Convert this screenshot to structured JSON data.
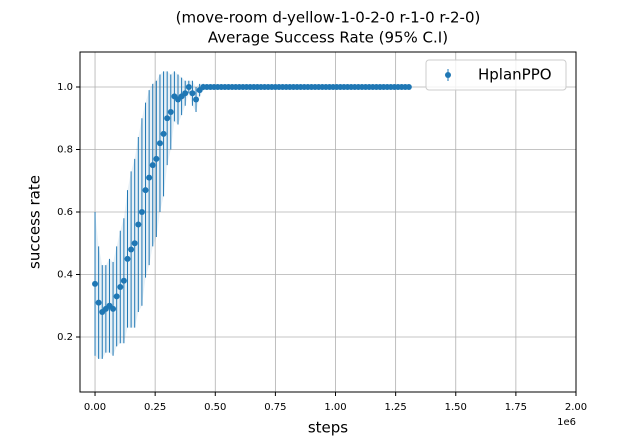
{
  "chart_data": {
    "type": "errorbar",
    "title": "(move-room d-yellow-1-0-2-0 r-1-0 r-2-0)",
    "subtitle": "Average Success Rate (95% C.I)",
    "x_label": "steps",
    "y_label": "success rate",
    "x_offset_label": "1e6",
    "legend": "upper right",
    "grid": true,
    "xlim": [
      -62500,
      2000000
    ],
    "xticks": [
      {
        "value": 0,
        "label": "0.00"
      },
      {
        "value": 250000,
        "label": "0.25"
      },
      {
        "value": 500000,
        "label": "0.50"
      },
      {
        "value": 750000,
        "label": "0.75"
      },
      {
        "value": 1000000,
        "label": "1.00"
      },
      {
        "value": 1250000,
        "label": "1.25"
      },
      {
        "value": 1500000,
        "label": "1.50"
      },
      {
        "value": 1750000,
        "label": "1.75"
      },
      {
        "value": 2000000,
        "label": "2.00"
      }
    ],
    "ylim": [
      0.024,
      1.112
    ],
    "yticks": [
      0.2,
      0.4,
      0.6,
      0.8,
      {
        "value": 1,
        "label": "1.0"
      }
    ],
    "series": [
      {
        "name": "HplanPPO",
        "color": "#1f77b4",
        "x": [
          0,
          15000,
          30000,
          45000,
          60000,
          75000,
          90000,
          105000,
          120000,
          135000,
          150000,
          165000,
          180000,
          195000,
          210000,
          225000,
          240000,
          255000,
          270000,
          285000,
          300000,
          315000,
          330000,
          345000,
          360000,
          375000,
          390000,
          405000,
          420000,
          435000,
          450000,
          465000,
          480000,
          495000,
          510000,
          525000,
          540000,
          555000,
          570000,
          585000,
          600000,
          615000,
          630000,
          645000,
          660000,
          675000,
          690000,
          705000,
          720000,
          735000,
          750000,
          765000,
          780000,
          795000,
          810000,
          825000,
          840000,
          855000,
          870000,
          885000,
          900000,
          915000,
          930000,
          945000,
          960000,
          975000,
          990000,
          1005000,
          1020000,
          1035000,
          1050000,
          1065000,
          1080000,
          1095000,
          1110000,
          1125000,
          1140000,
          1155000,
          1170000,
          1185000,
          1200000,
          1215000,
          1230000,
          1245000,
          1260000,
          1275000,
          1290000,
          1305000
        ],
        "values": [
          0.37,
          0.31,
          0.28,
          0.29,
          0.3,
          0.29,
          0.33,
          0.36,
          0.38,
          0.45,
          0.48,
          0.5,
          0.56,
          0.6,
          0.67,
          0.71,
          0.75,
          0.77,
          0.82,
          0.85,
          0.9,
          0.92,
          0.97,
          0.96,
          0.97,
          0.98,
          1.0,
          0.98,
          0.96,
          0.99,
          1.0,
          1.0,
          1,
          1,
          1,
          1,
          1,
          1,
          1,
          1,
          1,
          1,
          1,
          1,
          1,
          1,
          1,
          1,
          1,
          1,
          1,
          1,
          1,
          1,
          1,
          1,
          1,
          1,
          1,
          1,
          1,
          1,
          1,
          1,
          1,
          1,
          1,
          1,
          1,
          1,
          1,
          1,
          1,
          1,
          1,
          1,
          1,
          1,
          1,
          1,
          1,
          1,
          1,
          1,
          1,
          1,
          1,
          1
        ],
        "errors": [
          0.23,
          0.18,
          0.15,
          0.14,
          0.15,
          0.15,
          0.16,
          0.18,
          0.2,
          0.22,
          0.25,
          0.27,
          0.28,
          0.3,
          0.28,
          0.28,
          0.26,
          0.25,
          0.22,
          0.2,
          0.15,
          0.12,
          0.08,
          0.08,
          0.06,
          0.04,
          0.02,
          0.04,
          0.04,
          0.02,
          0.01,
          0,
          0,
          0,
          0,
          0,
          0,
          0,
          0,
          0,
          0,
          0,
          0,
          0,
          0,
          0,
          0,
          0,
          0,
          0,
          0,
          0,
          0,
          0,
          0,
          0,
          0,
          0,
          0,
          0,
          0,
          0,
          0,
          0,
          0,
          0,
          0,
          0,
          0,
          0,
          0,
          0,
          0,
          0,
          0,
          0,
          0,
          0,
          0,
          0,
          0,
          0,
          0,
          0,
          0,
          0,
          0,
          0
        ]
      }
    ]
  }
}
